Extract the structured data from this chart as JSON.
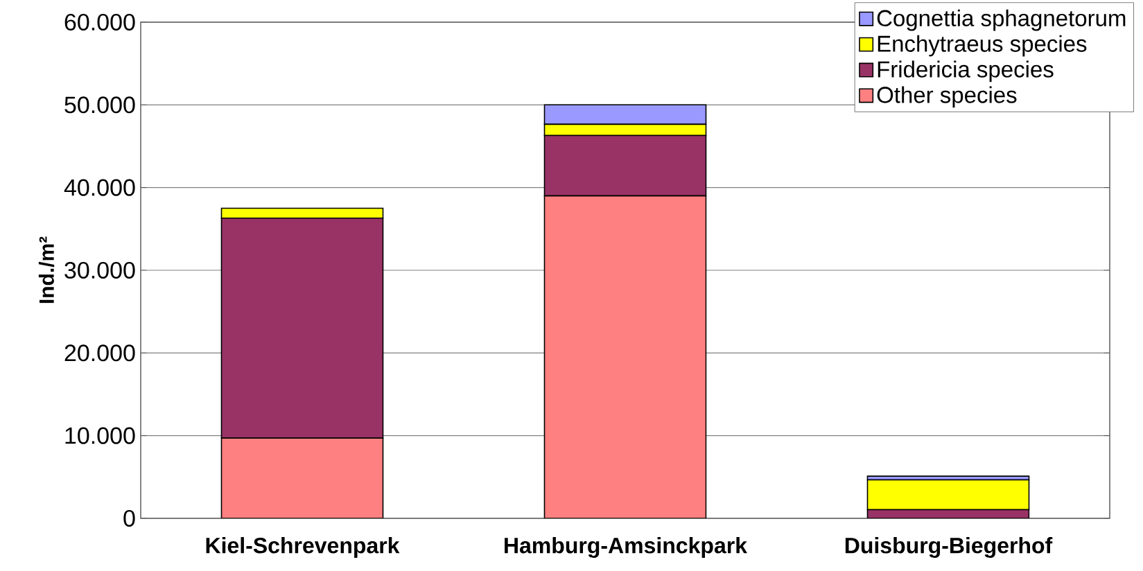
{
  "chart_data": {
    "type": "bar",
    "stacked": true,
    "ylabel": "Ind./m²",
    "categories": [
      "Kiel-Schrevenpark",
      "Hamburg-Amsinckpark",
      "Duisburg-Biegerhof"
    ],
    "series": [
      {
        "name": "Other species",
        "color": "#ff8080",
        "values": [
          9700,
          39000,
          0
        ]
      },
      {
        "name": "Fridericia species",
        "color": "#993366",
        "values": [
          26600,
          7300,
          1050
        ]
      },
      {
        "name": "Enchytraeus species",
        "color": "#ffff00",
        "values": [
          1200,
          1350,
          3600
        ]
      },
      {
        "name": "Cognettia sphagnetorum",
        "color": "#9999ff",
        "values": [
          0,
          2350,
          450
        ]
      }
    ],
    "ylim": [
      0,
      60000
    ],
    "yticks": [
      0,
      {
        "value": 10000,
        "label": "10.000"
      },
      {
        "value": 20000,
        "label": "20.000"
      },
      {
        "value": 30000,
        "label": "30.000"
      },
      {
        "value": 40000,
        "label": "40.000"
      },
      {
        "value": 50000,
        "label": "50.000"
      },
      {
        "value": 60000,
        "label": "60.000"
      }
    ],
    "grid": "y",
    "legend": "top right"
  }
}
